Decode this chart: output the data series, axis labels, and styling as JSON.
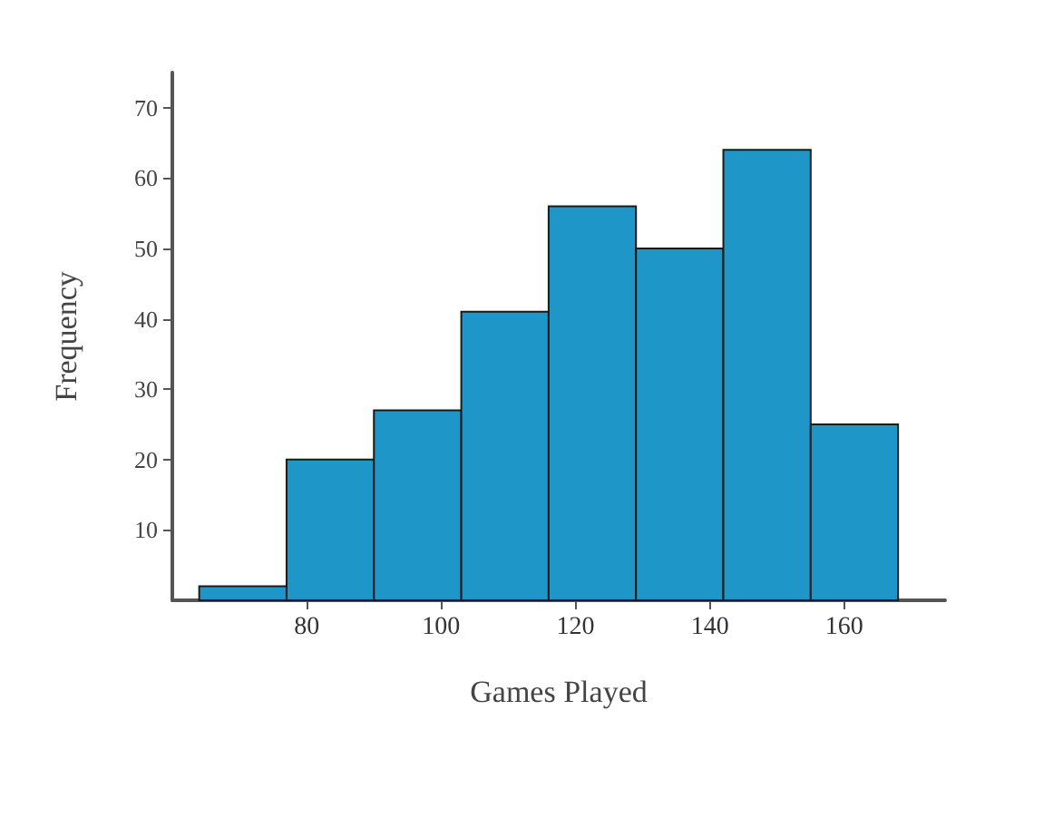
{
  "chart_data": {
    "type": "histogram",
    "xlabel": "Games Played",
    "ylabel": "Frequency",
    "bins": [
      64,
      77,
      90,
      103,
      116,
      129,
      142,
      155,
      168
    ],
    "values": [
      2,
      20,
      27,
      41,
      56,
      50,
      64,
      25
    ],
    "color": "#1e96c8",
    "xlim": [
      60,
      175
    ],
    "ylim": [
      0,
      75
    ],
    "xticks": [
      80,
      100,
      120,
      140,
      160
    ],
    "yticks": [
      10,
      20,
      30,
      40,
      50,
      60,
      70
    ]
  }
}
